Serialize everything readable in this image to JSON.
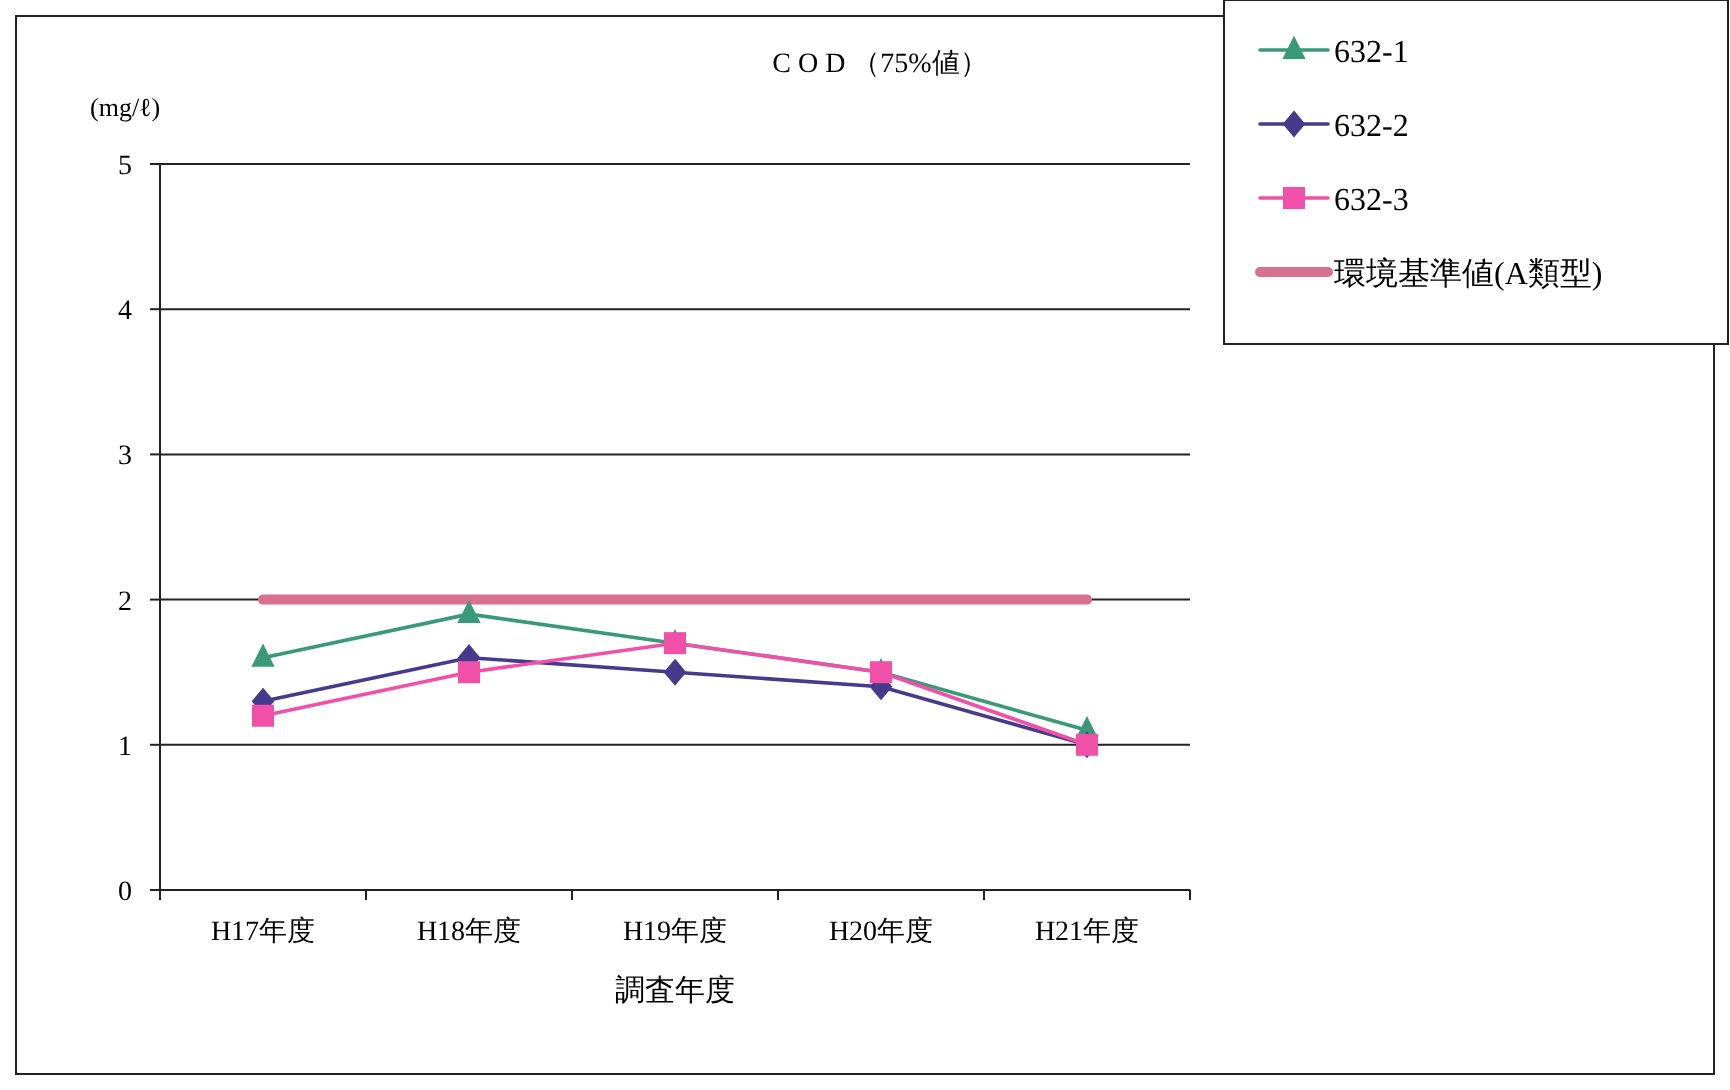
{
  "chart_data": {
    "type": "line",
    "title": "C O D （75%値）",
    "ylabel": "(mg/ℓ)",
    "xlabel": "調査年度",
    "categories": [
      "H17年度",
      "H18年度",
      "H19年度",
      "H20年度",
      "H21年度"
    ],
    "series": [
      {
        "name": "632-1",
        "color": "#3a9a78",
        "marker": "triangle",
        "values": [
          1.6,
          1.9,
          1.7,
          1.5,
          1.1
        ]
      },
      {
        "name": "632-2",
        "color": "#463a8c",
        "marker": "diamond",
        "values": [
          1.3,
          1.6,
          1.5,
          1.4,
          1.0
        ]
      },
      {
        "name": "632-3",
        "color": "#f050a8",
        "marker": "square",
        "values": [
          1.2,
          1.5,
          1.7,
          1.5,
          1.0
        ]
      },
      {
        "name": "環境基準値(A類型)",
        "color": "#d87090",
        "marker": "none",
        "values": [
          2,
          2,
          2,
          2,
          2
        ]
      }
    ],
    "ylim": [
      0,
      5
    ],
    "yticks": [
      0,
      1,
      2,
      3,
      4,
      5
    ],
    "grid": "y",
    "legend": "top right"
  }
}
